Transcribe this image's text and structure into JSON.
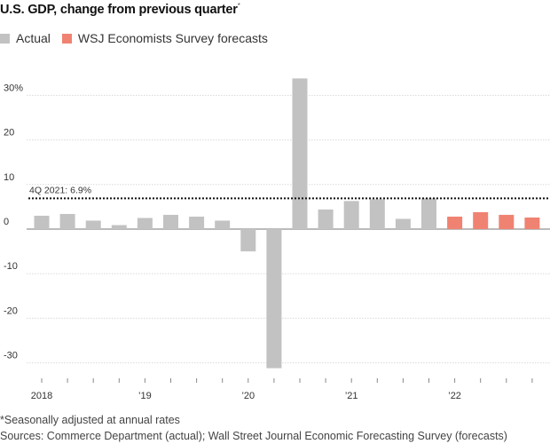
{
  "header": {
    "title": "U.S. GDP, change from previous quarter",
    "title_mark": "*"
  },
  "legend": [
    {
      "label": "Actual",
      "color": "#c2c2c2"
    },
    {
      "label": "WSJ Economists Survey forecasts",
      "color": "#f08272"
    }
  ],
  "footer": {
    "note": "*Seasonally adjusted at annual rates",
    "sources": "Sources: Commerce Department (actual); Wall Street Journal Economic Forecasting Survey (forecasts)"
  },
  "chart_data": {
    "type": "bar",
    "ylim": [
      -31.5,
      35
    ],
    "y_ticks": [
      {
        "value": 30,
        "label": "30%"
      },
      {
        "value": 20,
        "label": "20"
      },
      {
        "value": 10,
        "label": "10"
      },
      {
        "value": 0,
        "label": "0"
      },
      {
        "value": -10,
        "label": "-10"
      },
      {
        "value": -20,
        "label": "-20"
      },
      {
        "value": -30,
        "label": "-30"
      }
    ],
    "x_labels": [
      {
        "index": 0,
        "label": "2018"
      },
      {
        "index": 4,
        "label": "’19"
      },
      {
        "index": 8,
        "label": "’20"
      },
      {
        "index": 12,
        "label": "’21"
      },
      {
        "index": 16,
        "label": "’22"
      }
    ],
    "reference_line": {
      "value": 6.9,
      "label": "4Q 2021: 6.9%"
    },
    "grid": true,
    "series": [
      {
        "name": "Actual",
        "color": "#c2c2c2",
        "values": [
          3.0,
          3.4,
          1.9,
          0.9,
          2.5,
          3.2,
          2.8,
          1.9,
          -5.0,
          -31.2,
          33.8,
          4.4,
          6.3,
          6.7,
          2.3,
          6.9
        ]
      },
      {
        "name": "WSJ Economists Survey forecasts",
        "color": "#f08272",
        "values": [
          2.8,
          3.8,
          3.2,
          2.6
        ]
      }
    ]
  }
}
